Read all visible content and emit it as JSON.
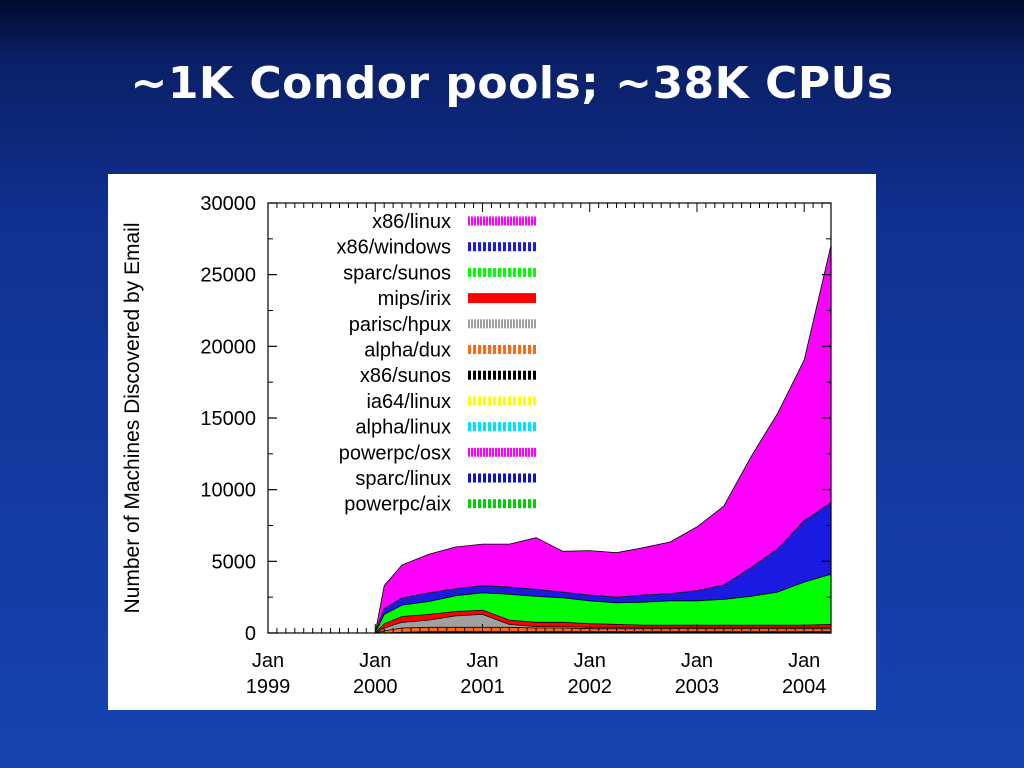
{
  "slide": {
    "title": "~1K Condor pools; ~38K CPUs"
  },
  "chart_data": {
    "type": "area",
    "stacked": true,
    "title": "",
    "ylabel": "Number of Machines Discovered by Email",
    "xlabel": "",
    "ylim": [
      0,
      30000
    ],
    "yticks": [
      0,
      5000,
      10000,
      15000,
      20000,
      25000,
      30000
    ],
    "xlim": [
      "1999-01",
      "2004-04"
    ],
    "xticks": [
      {
        "line1": "Jan",
        "line2": "1999",
        "x": "1999-01"
      },
      {
        "line1": "Jan",
        "line2": "2000",
        "x": "2000-01"
      },
      {
        "line1": "Jan",
        "line2": "2001",
        "x": "2001-01"
      },
      {
        "line1": "Jan",
        "line2": "2002",
        "x": "2002-01"
      },
      {
        "line1": "Jan",
        "line2": "2003",
        "x": "2003-01"
      },
      {
        "line1": "Jan",
        "line2": "2004",
        "x": "2004-01"
      }
    ],
    "legend_position": "top-left",
    "x": [
      "2000-01",
      "2000-02",
      "2000-04",
      "2000-07",
      "2000-10",
      "2001-01",
      "2001-04",
      "2001-07",
      "2001-10",
      "2002-01",
      "2002-04",
      "2002-07",
      "2002-10",
      "2003-01",
      "2003-04",
      "2003-07",
      "2003-10",
      "2004-01",
      "2004-04"
    ],
    "series": [
      {
        "name": "powerpc/aix",
        "color": "#00d000",
        "pattern": "dash-thick",
        "values": [
          0,
          0,
          0,
          0,
          0,
          0,
          0,
          0,
          0,
          0,
          0,
          0,
          0,
          0,
          0,
          0,
          0,
          0,
          0
        ]
      },
      {
        "name": "sparc/linux",
        "color": "#1010d0",
        "pattern": "dash-thick",
        "values": [
          0,
          0,
          0,
          0,
          0,
          0,
          0,
          0,
          0,
          0,
          0,
          0,
          0,
          0,
          0,
          0,
          0,
          0,
          0
        ]
      },
      {
        "name": "powerpc/osx",
        "color": "#ff00ff",
        "pattern": "dash-thin",
        "values": [
          0,
          0,
          0,
          0,
          0,
          0,
          0,
          0,
          0,
          0,
          0,
          0,
          0,
          0,
          0,
          0,
          0,
          0,
          0
        ]
      },
      {
        "name": "alpha/linux",
        "color": "#00e0ff",
        "pattern": "dash-thick",
        "values": [
          0,
          0,
          0,
          0,
          0,
          0,
          0,
          0,
          0,
          0,
          0,
          0,
          0,
          0,
          0,
          0,
          0,
          0,
          0
        ]
      },
      {
        "name": "ia64/linux",
        "color": "#ffff00",
        "pattern": "dash-thick",
        "values": [
          0,
          0,
          0,
          0,
          0,
          0,
          0,
          0,
          0,
          0,
          0,
          0,
          0,
          0,
          0,
          0,
          0,
          0,
          0
        ]
      },
      {
        "name": "x86/sunos",
        "color": "#000000",
        "pattern": "dash-thick",
        "values": [
          0,
          0,
          50,
          100,
          100,
          100,
          100,
          100,
          100,
          100,
          100,
          100,
          100,
          100,
          100,
          100,
          100,
          100,
          100
        ]
      },
      {
        "name": "alpha/dux",
        "color": "#ff6a10",
        "pattern": "dash-thick",
        "values": [
          0,
          150,
          300,
          300,
          300,
          300,
          300,
          250,
          250,
          200,
          200,
          200,
          200,
          200,
          200,
          200,
          200,
          200,
          200
        ]
      },
      {
        "name": "parisc/hpux",
        "color": "#a0a0a0",
        "pattern": "dash-thin",
        "values": [
          0,
          200,
          400,
          500,
          800,
          900,
          200,
          100,
          100,
          100,
          100,
          100,
          100,
          100,
          100,
          100,
          100,
          100,
          100
        ]
      },
      {
        "name": "mips/irix",
        "color": "#ff0000",
        "pattern": "solid",
        "values": [
          0,
          300,
          400,
          400,
          300,
          300,
          300,
          300,
          300,
          250,
          200,
          150,
          150,
          150,
          150,
          150,
          150,
          150,
          200
        ]
      },
      {
        "name": "sparc/sunos",
        "color": "#00ff00",
        "pattern": "dash-thick",
        "values": [
          0,
          650,
          800,
          900,
          1100,
          1200,
          1800,
          1800,
          1700,
          1600,
          1500,
          1600,
          1700,
          1700,
          1800,
          2000,
          2300,
          3000,
          3500
        ]
      },
      {
        "name": "x86/windows",
        "color": "#1a1ae0",
        "pattern": "dash-thick",
        "values": [
          0,
          400,
          500,
          600,
          500,
          500,
          500,
          500,
          400,
          400,
          400,
          500,
          500,
          700,
          1000,
          2000,
          3000,
          4300,
          5000
        ]
      },
      {
        "name": "x86/linux",
        "color": "#ff00ff",
        "pattern": "dash-thin",
        "values": [
          0,
          1600,
          2300,
          2700,
          2900,
          2900,
          3000,
          3600,
          2850,
          3100,
          3100,
          3300,
          3600,
          4450,
          5500,
          7700,
          9450,
          11200,
          17950
        ]
      }
    ]
  }
}
